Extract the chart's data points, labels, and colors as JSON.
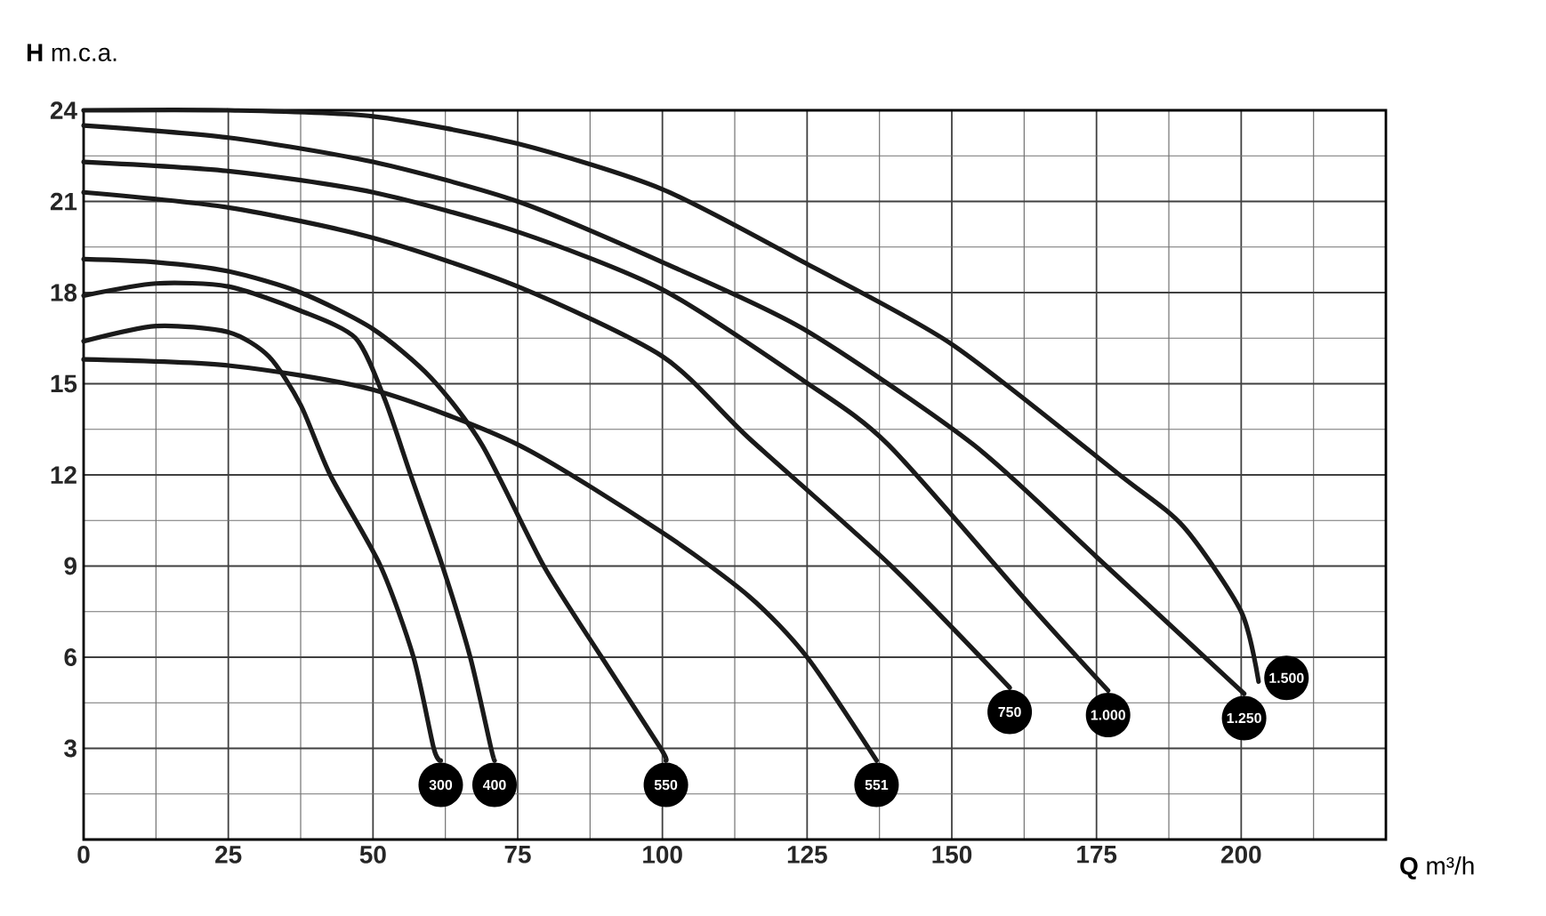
{
  "chart_data": {
    "type": "line",
    "xlabel": "**Q** m³/h",
    "ylabel": "**H** m.c.a.",
    "xlim": [
      0,
      225
    ],
    "ylim": [
      0,
      24
    ],
    "xticks": [
      0,
      25,
      50,
      75,
      100,
      125,
      150,
      175,
      200
    ],
    "yticks": [
      3,
      6,
      9,
      12,
      15,
      18,
      21,
      24
    ],
    "grid": true,
    "series": [
      {
        "name": "300",
        "color": "#1a1a1a",
        "x": [
          0,
          12.5,
          25,
          32,
          37.5,
          42.6,
          51.3,
          57,
          60.5,
          61.7
        ],
        "values": [
          16.4,
          16.9,
          16.7,
          15.9,
          14.3,
          12,
          9,
          6,
          3,
          2.6
        ]
      },
      {
        "name": "400",
        "color": "#1a1a1a",
        "x": [
          0,
          12.5,
          25,
          37.5,
          47,
          52,
          56.5,
          62,
          66.8,
          70.4,
          71
        ],
        "values": [
          17.9,
          18.3,
          18.2,
          17.4,
          16.5,
          14.5,
          12,
          9,
          6,
          3,
          2.6
        ]
      },
      {
        "name": "550",
        "color": "#1a1a1a",
        "x": [
          0,
          12.5,
          25,
          37.5,
          50,
          60,
          68.8,
          79.5,
          89.5,
          99.7,
          100.6
        ],
        "values": [
          19.1,
          19.0,
          18.7,
          18.0,
          16.8,
          15.2,
          13.0,
          9,
          6,
          3,
          2.6
        ]
      },
      {
        "name": "551",
        "color": "#1a1a1a",
        "x": [
          0,
          25,
          50,
          75,
          100,
          115,
          125,
          137
        ],
        "values": [
          15.8,
          15.6,
          14.8,
          13.0,
          10.1,
          8.0,
          6.0,
          2.6
        ]
      },
      {
        "name": "750",
        "color": "#1a1a1a",
        "x": [
          0,
          25,
          50,
          75,
          100,
          115,
          139,
          160
        ],
        "values": [
          21.3,
          20.8,
          19.8,
          18.2,
          15.9,
          13.2,
          9.1,
          5.0
        ]
      },
      {
        "name": "1.000",
        "color": "#1a1a1a",
        "x": [
          0,
          25,
          50,
          75,
          100,
          124.4,
          139,
          163.6,
          177
        ],
        "values": [
          22.3,
          22.0,
          21.3,
          20.0,
          18.1,
          15.1,
          13.0,
          7.7,
          4.9
        ]
      },
      {
        "name": "1.250",
        "color": "#1a1a1a",
        "x": [
          0,
          25,
          50,
          75,
          100,
          124.4,
          153.7,
          175,
          200.5
        ],
        "values": [
          23.5,
          23.1,
          22.3,
          21.0,
          19.0,
          16.8,
          13.0,
          9.3,
          4.8
        ]
      },
      {
        "name": "1.500",
        "color": "#1a1a1a",
        "x": [
          0,
          25,
          50,
          75,
          100,
          124.4,
          150,
          179,
          190,
          200,
          203
        ],
        "values": [
          24.0,
          24.0,
          23.8,
          22.9,
          21.4,
          19.0,
          16.3,
          12.0,
          10.3,
          7.5,
          5.2
        ]
      }
    ]
  }
}
